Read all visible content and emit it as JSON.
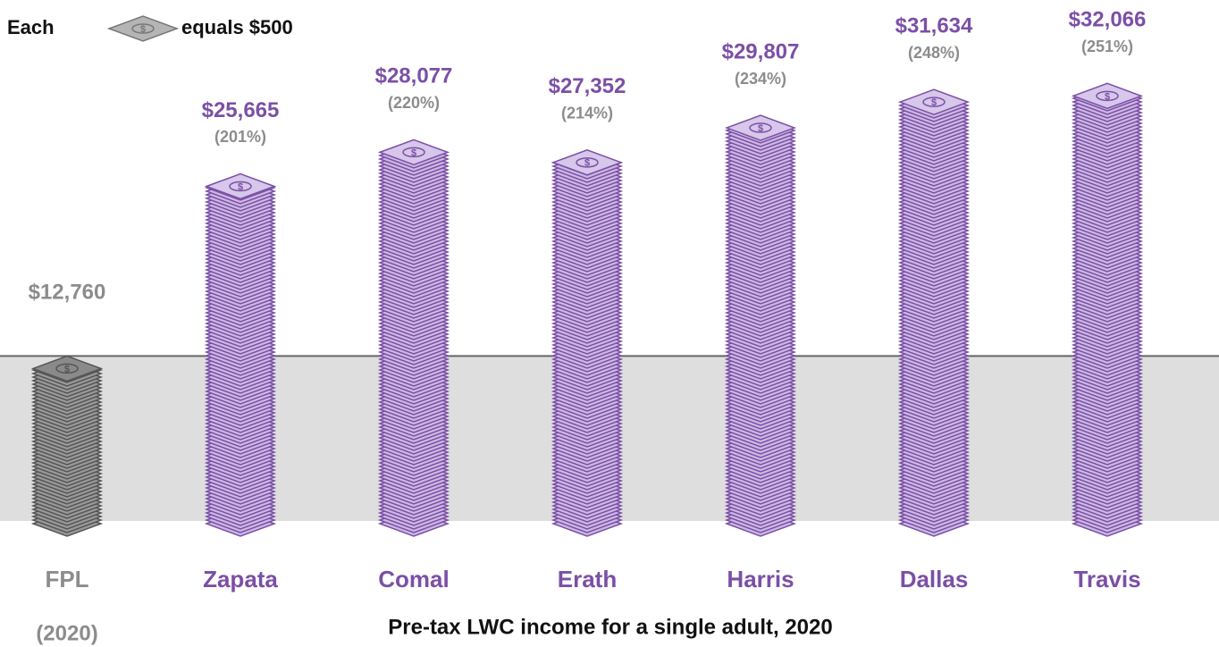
{
  "chart_data": {
    "type": "pictograph",
    "legend_prefix": "Each",
    "legend_suffix": "equals $500",
    "unit_value": 500,
    "unit_symbol": "$",
    "categories": [
      "FPL",
      "Zapata",
      "Comal",
      "Erath",
      "Harris",
      "Dallas",
      "Travis"
    ],
    "category_note": "(2020)",
    "values": [
      12760,
      25665,
      28077,
      27352,
      29807,
      31634,
      32066
    ],
    "value_labels": [
      "$12,760",
      "$25,665",
      "$28,077",
      "$27,352",
      "$29,807",
      "$31,634",
      "$32,066"
    ],
    "percent_labels": [
      null,
      "(201%)",
      "(220%)",
      "(214%)",
      "(234%)",
      "(248%)",
      "(251%)"
    ],
    "baseline_color": "#8c8c8c",
    "color": "#7b4fa6",
    "x_axis_label": "Pre-tax LWC income for a single adult, 2020"
  }
}
